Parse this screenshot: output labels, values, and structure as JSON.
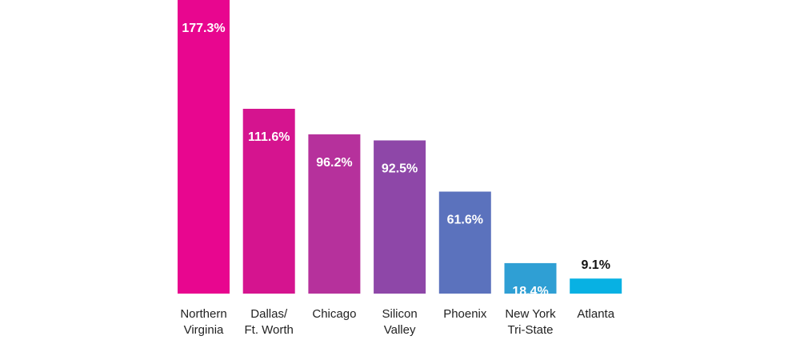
{
  "chart_data": {
    "type": "bar",
    "categories": [
      [
        "Northern",
        "Virginia"
      ],
      [
        "Dallas/",
        "Ft. Worth"
      ],
      [
        "Chicago"
      ],
      [
        "Silicon",
        "Valley"
      ],
      [
        "Phoenix"
      ],
      [
        "New York",
        "Tri-State"
      ],
      [
        "Atlanta"
      ]
    ],
    "values": [
      177.3,
      111.6,
      96.2,
      92.5,
      61.6,
      18.4,
      9.1
    ],
    "value_labels": [
      "177.3%",
      "111.6%",
      "96.2%",
      "92.5%",
      "61.6%",
      "18.4%",
      "9.1%"
    ],
    "colors": [
      "#E8068F",
      "#D5148F",
      "#B6319C",
      "#8E47A8",
      "#5B72BD",
      "#2F9FD4",
      "#08B1E3"
    ],
    "label_colors": {
      "inside": "#FFFFFF",
      "outside": "#111111"
    },
    "title": "",
    "xlabel": "",
    "ylabel": "",
    "ylim": [
      0,
      177.3
    ],
    "grid": false,
    "legend": "none"
  }
}
